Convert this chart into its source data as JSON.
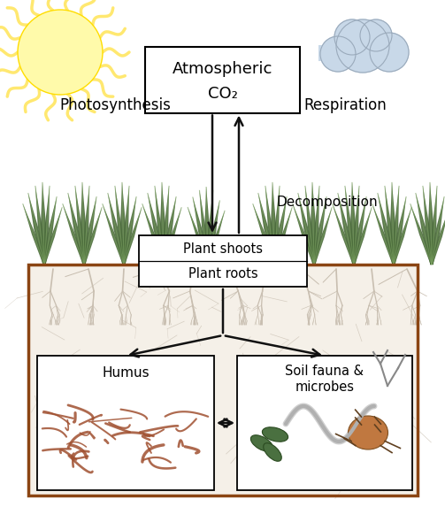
{
  "bg_color": "#ffffff",
  "soil_bg_color": "#f5f0e8",
  "atm_box_text_line1": "Atmospheric",
  "atm_box_text_line2": "CO₂",
  "plant_shoots_text": "Plant shoots",
  "plant_roots_text": "Plant roots",
  "photosynthesis_text": "Photosynthesis",
  "respiration_text": "Respiration",
  "decomposition_text": "Decomposition",
  "humus_text": "Humus",
  "soil_fauna_text_line1": "Soil fauna &",
  "soil_fauna_text_line2": "microbes",
  "soil_border_color": "#8B4513",
  "arrow_color": "#111111",
  "sun_color": "#FFFAAA",
  "sun_ray_color": "#FFE870",
  "cloud_color": "#C8D8E8",
  "grass_color_dark": "#4A6B3A",
  "grass_color_light": "#7AA060",
  "humus_fiber_color": "#A05030",
  "root_color": "#C8BEB0",
  "leaf_color": "#4A7040",
  "worm_color": "#C0C0C0",
  "mite_color": "#C07840"
}
